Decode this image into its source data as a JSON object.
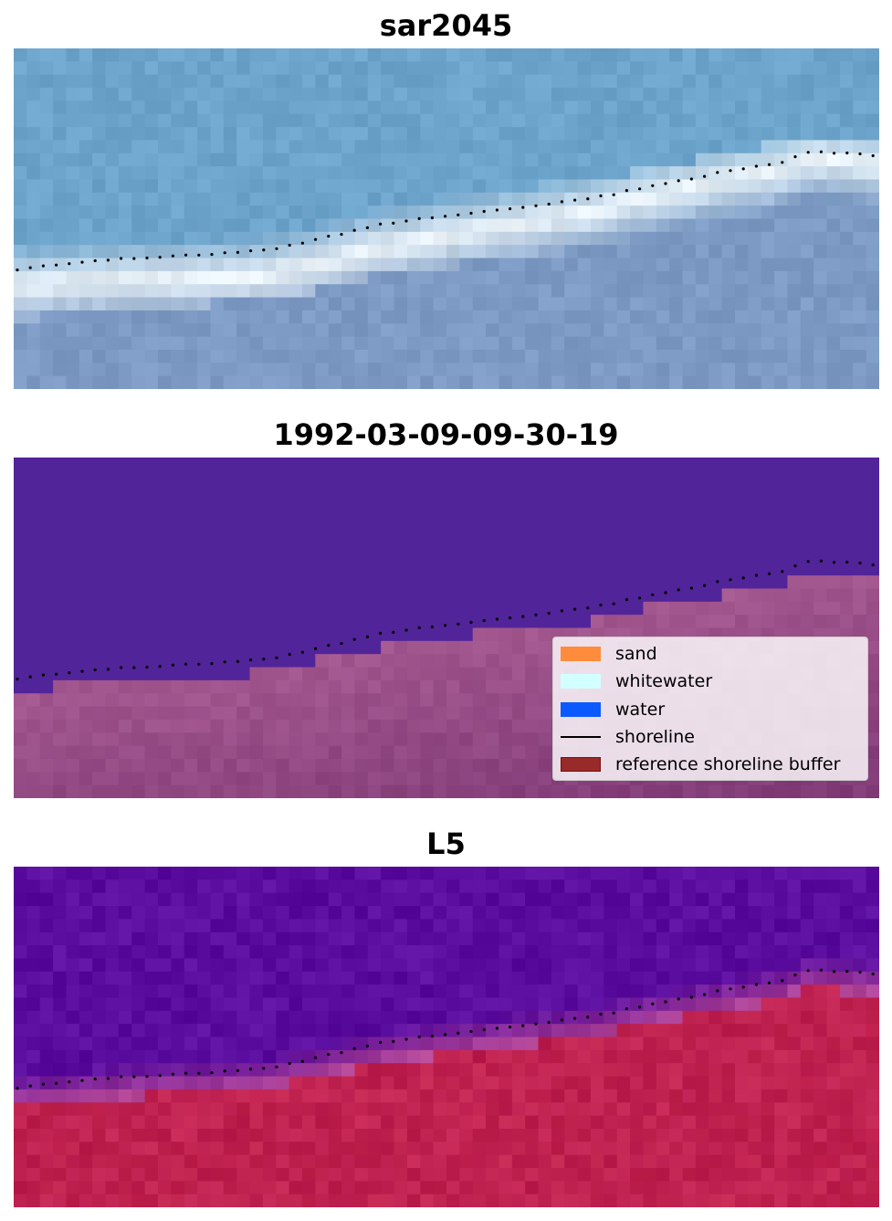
{
  "panels": [
    {
      "title": "sar2045",
      "type": "rgb"
    },
    {
      "title": "1992-03-09-09-30-19",
      "type": "classification"
    },
    {
      "title": "L5",
      "type": "index"
    }
  ],
  "legend": {
    "items": [
      {
        "label": "sand",
        "color": "#ff8c3c",
        "kind": "patch"
      },
      {
        "label": "whitewater",
        "color": "#d2ffff",
        "kind": "patch"
      },
      {
        "label": "water",
        "color": "#0a5aff",
        "kind": "patch"
      },
      {
        "label": "shoreline",
        "color": "#000000",
        "kind": "line"
      },
      {
        "label": "reference shoreline buffer",
        "color": "#992a2a",
        "kind": "patch"
      }
    ]
  },
  "colors": {
    "rgb_sky": "#6da4cb",
    "rgb_whitewater": "#f2f8fb",
    "rgb_land": "#7c9ac4",
    "class_water": "#52249a",
    "class_land": "#a3578f",
    "index_water": "#5a0d9e",
    "index_land": "#bd2050",
    "shoreline": "#000000"
  }
}
